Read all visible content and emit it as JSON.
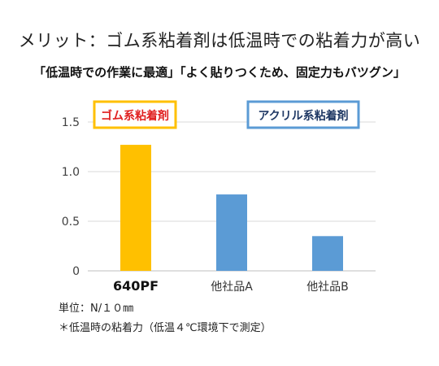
{
  "title": "メリット：ゴム系粘着剤は低温時での粘着力が高い",
  "subtitle": "「低温時での作業に最適」「よく貼りつくため、固定力もバツグン」",
  "chart_data": {
    "type": "bar",
    "categories": [
      "640PF",
      "他社品A",
      "他社品B"
    ],
    "values": [
      1.27,
      0.77,
      0.35
    ],
    "bar_colors": [
      "#FFC000",
      "#5B9BD5",
      "#5B9BD5"
    ],
    "ylim": [
      0,
      1.5
    ],
    "yticks": [
      0,
      0.5,
      1.0,
      1.5
    ],
    "ytick_labels": [
      "0",
      "0.5",
      "1.0",
      "1.5"
    ],
    "grid": true,
    "legend": [
      {
        "label": "ゴム系粘着剤",
        "text_color": "#E02020",
        "border_color": "#FFC000"
      },
      {
        "label": "アクリル系粘着剤",
        "text_color": "#1F3864",
        "border_color": "#5B9BD5"
      }
    ]
  },
  "footnotes": {
    "unit": "単位：N/１０㎜",
    "note": "＊低温時の粘着力（低温４℃環境下で測定）"
  }
}
